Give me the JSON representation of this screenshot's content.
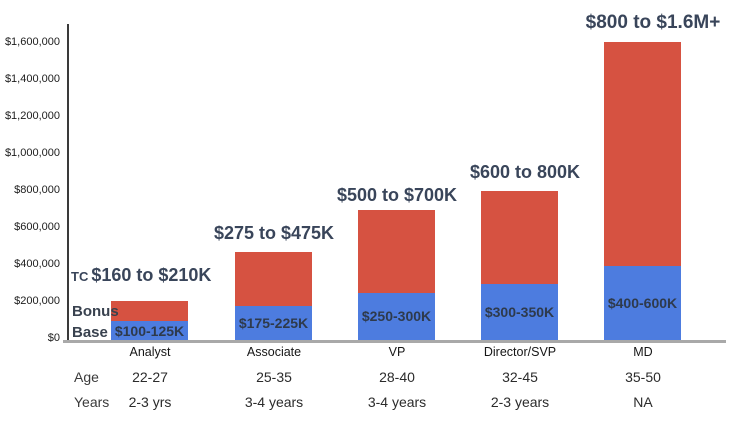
{
  "chart_data": {
    "type": "bar",
    "stacked": true,
    "title": "",
    "xlabel": "",
    "ylabel": "",
    "grid": false,
    "ylim": [
      0,
      1600000
    ],
    "yticks": [
      "$0",
      "$200,000",
      "$400,000",
      "$600,000",
      "$800,000",
      "$1,000,000",
      "$1,200,000",
      "$1,400,000",
      "$1,600,000"
    ],
    "categories": [
      "Analyst",
      "Associate",
      "VP",
      "Director/SVP",
      "MD"
    ],
    "series": [
      {
        "name": "Base",
        "color": "#4d7cdf",
        "values": [
          100000,
          185000,
          255000,
          300000,
          400000
        ],
        "labels": [
          "$100-125K",
          "$175-225K",
          "$250-300K",
          "$300-350K",
          "$400-600K"
        ]
      },
      {
        "name": "Bonus",
        "color": "#d65241",
        "values": [
          110000,
          290000,
          445000,
          500000,
          1200000
        ]
      }
    ],
    "tc_prefix": "TC",
    "total_labels": [
      "$160 to $210K",
      "$275 to $475K",
      "$500 to $700K",
      "$600 to 800K",
      "$800 to $1.6M+"
    ],
    "legend": {
      "bonus": "Bonus",
      "base": "Base"
    }
  },
  "table": {
    "age_label": "Age",
    "years_label": "Years",
    "age": [
      "22-27",
      "25-35",
      "28-40",
      "32-45",
      "35-50"
    ],
    "years": [
      "2-3 yrs",
      "3-4 years",
      "3-4 years",
      "2-3 years",
      "NA"
    ]
  },
  "colors": {
    "base": "#4d7cdf",
    "bonus": "#d65241",
    "label_text": "#39455a",
    "axis": "#3a3a3a",
    "baseline": "#a9a9a9"
  }
}
